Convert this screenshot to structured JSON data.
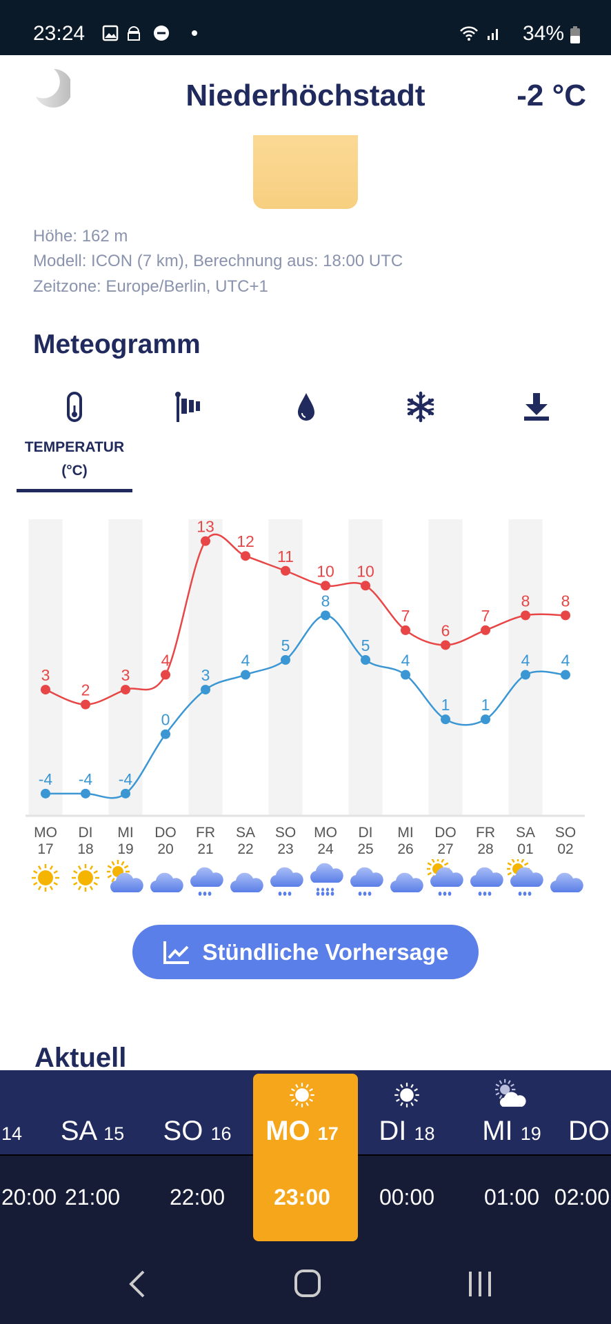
{
  "status_bar": {
    "time": "23:24",
    "battery": "34%"
  },
  "header": {
    "location": "Niederhöchstadt",
    "current_temp": "-2 °C"
  },
  "info": {
    "altitude": "Höhe: 162 m",
    "model": "Modell: ICON (7 km), Berechnung aus: 18:00 UTC",
    "timezone": "Zeitzone: Europe/Berlin, UTC+1"
  },
  "meteogram": {
    "heading": "Meteogramm",
    "tabs": [
      {
        "icon": "thermometer-icon",
        "label": "TEMPERATUR (°C)",
        "active": true
      },
      {
        "icon": "windsock-icon"
      },
      {
        "icon": "drop-icon"
      },
      {
        "icon": "snowflake-icon"
      },
      {
        "icon": "download-icon"
      }
    ]
  },
  "chart_data": {
    "type": "line",
    "categories": [
      "MO 17",
      "DI 18",
      "MI 19",
      "DO 20",
      "FR 21",
      "SA 22",
      "SO 23",
      "MO 24",
      "DI 25",
      "MI 26",
      "DO 27",
      "FR 28",
      "SA 01",
      "SO 02"
    ],
    "days": [
      {
        "d": "MO",
        "n": "17",
        "w": "sun"
      },
      {
        "d": "DI",
        "n": "18",
        "w": "sun"
      },
      {
        "d": "MI",
        "n": "19",
        "w": "partly"
      },
      {
        "d": "DO",
        "n": "20",
        "w": "cloud"
      },
      {
        "d": "FR",
        "n": "21",
        "w": "rain"
      },
      {
        "d": "SA",
        "n": "22",
        "w": "cloud"
      },
      {
        "d": "SO",
        "n": "23",
        "w": "rain"
      },
      {
        "d": "MO",
        "n": "24",
        "w": "heavyrain"
      },
      {
        "d": "DI",
        "n": "25",
        "w": "rain"
      },
      {
        "d": "MI",
        "n": "26",
        "w": "cloud"
      },
      {
        "d": "DO",
        "n": "27",
        "w": "partlyrain"
      },
      {
        "d": "FR",
        "n": "28",
        "w": "rain"
      },
      {
        "d": "SA",
        "n": "01",
        "w": "partlyrain"
      },
      {
        "d": "SO",
        "n": "02",
        "w": "cloud"
      }
    ],
    "series": [
      {
        "name": "max",
        "color": "#e84646",
        "values": [
          3,
          2,
          3,
          4,
          13,
          12,
          11,
          10,
          10,
          7,
          6,
          7,
          8,
          8
        ]
      },
      {
        "name": "min",
        "color": "#3a97d4",
        "values": [
          -4,
          -4,
          -4,
          0,
          3,
          4,
          5,
          8,
          5,
          4,
          1,
          1,
          4,
          4
        ]
      }
    ],
    "unit": "°C"
  },
  "button": {
    "label": "Stündliche Vorhersage"
  },
  "aktuell": {
    "heading": "Aktuell"
  },
  "timeline": {
    "days": [
      {
        "d": "",
        "n": "14"
      },
      {
        "d": "SA",
        "n": "15"
      },
      {
        "d": "SO",
        "n": "16"
      },
      {
        "d": "MO",
        "n": "17",
        "icon": "sun",
        "selected": true
      },
      {
        "d": "DI",
        "n": "18",
        "icon": "sun"
      },
      {
        "d": "MI",
        "n": "19",
        "icon": "partly"
      },
      {
        "d": "DO",
        "n": ""
      }
    ],
    "times": [
      "20:00",
      "21:00",
      "22:00",
      "23:00",
      "00:00",
      "01:00",
      "02:00"
    ]
  }
}
